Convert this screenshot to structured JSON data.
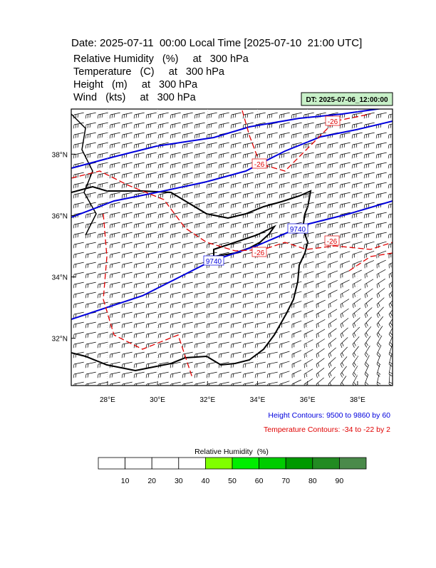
{
  "header": {
    "title": "Date: 2025-07-11  00:00 Local Time [2025-07-10  21:00 UTC]",
    "variables": [
      "Relative Humidity   (%)     at   300 hPa",
      "Temperature   (C)     at   300 hPa",
      "Height   (m)     at   300 hPa",
      "Wind   (kts)     at   300 hPa"
    ],
    "dt_label": "DT: 2025-07-06_12:00:00"
  },
  "map": {
    "lon_ticks": [
      {
        "value": 28,
        "label": "28°E"
      },
      {
        "value": 30,
        "label": "30°E"
      },
      {
        "value": 32,
        "label": "32°E"
      },
      {
        "value": 34,
        "label": "34°E"
      },
      {
        "value": 36,
        "label": "36°E"
      },
      {
        "value": 38,
        "label": "38°E"
      }
    ],
    "lat_ticks": [
      {
        "value": 38,
        "label": "38°N"
      },
      {
        "value": 36,
        "label": "36°N"
      },
      {
        "value": 34,
        "label": "34°N"
      },
      {
        "value": 32,
        "label": "32°N"
      }
    ],
    "lonlim": [
      26.55,
      39.4
    ],
    "latlim": [
      30.46,
      39.47
    ],
    "height_contour_labels": [
      "9740",
      "9740"
    ],
    "temperature_contour_labels": [
      "-26",
      "-26",
      "-26",
      "-26"
    ]
  },
  "footer": {
    "height_note": "Height Contours: 9500 to 9860 by 60",
    "temperature_note": "Temperature Contours: -34 to -22 by 2"
  },
  "colorbar": {
    "title": "Relative Humidity  (%)",
    "colors": [
      "#ffffff",
      "#ffffff",
      "#ffffff",
      "#ffffff",
      "#80ff00",
      "#00ee00",
      "#00cc00",
      "#009900",
      "#228b22",
      "#4a8a4a"
    ],
    "labels": [
      "10",
      "20",
      "30",
      "40",
      "50",
      "60",
      "70",
      "80",
      "90"
    ]
  }
}
